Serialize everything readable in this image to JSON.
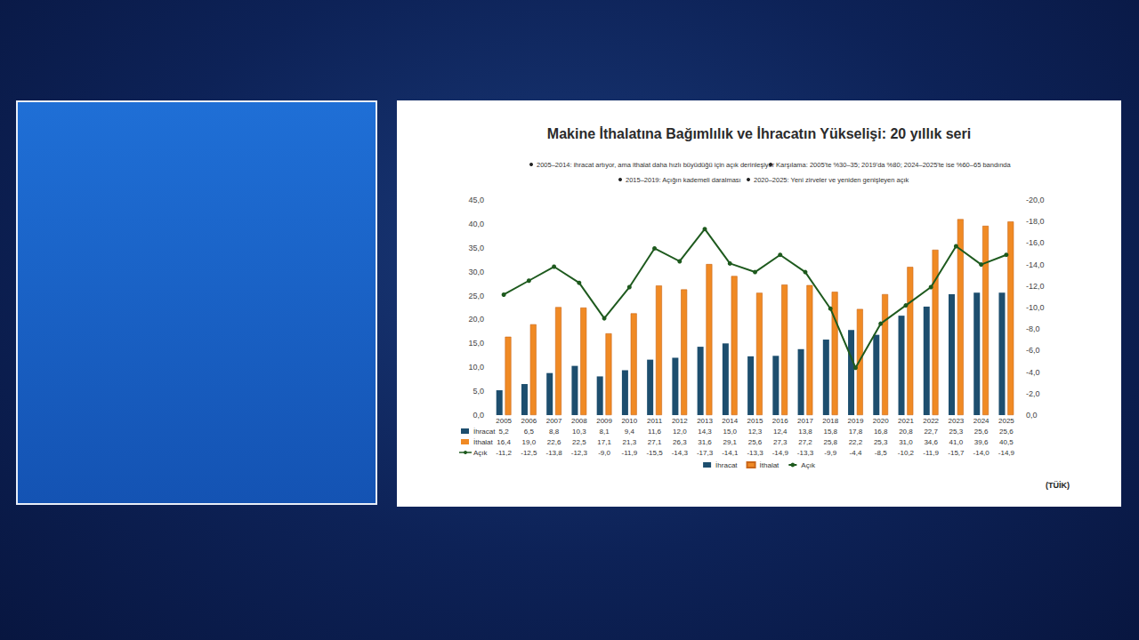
{
  "chart_data": {
    "type": "bar",
    "title": "Makine İthalatına Bağımlılık ve İhracatın Yükselişi: 20 yıllık seri",
    "annotations": [
      "2005–2014: ihracat artıyor, ama ithalat daha hızlı büyüdüğü için açık derinleşiyor",
      "Karşılama: 2005'te %30–35; 2019'da %80; 2024–2025'te ise %60–65 bandında",
      "2015–2019: Açığın kademeli daralması",
      "2020–2025: Yeni zirveler ve yeniden genişleyen açık"
    ],
    "source": "(TÜİK)",
    "categories": [
      "2005",
      "2006",
      "2007",
      "2008",
      "2009",
      "2010",
      "2011",
      "2012",
      "2013",
      "2014",
      "2015",
      "2016",
      "2017",
      "2018",
      "2019",
      "2020",
      "2021",
      "2022",
      "2023",
      "2024",
      "2025"
    ],
    "series": [
      {
        "name": "İhracat",
        "type": "bar",
        "color": "#1d4e6e",
        "values": [
          5.2,
          6.5,
          8.8,
          10.3,
          8.1,
          9.4,
          11.6,
          12.0,
          14.3,
          15.0,
          12.3,
          12.4,
          13.8,
          15.8,
          17.8,
          16.8,
          20.8,
          22.7,
          25.3,
          25.6,
          25.6
        ],
        "value_labels": [
          "5,2",
          "6,5",
          "8,8",
          "10,3",
          "8,1",
          "9,4",
          "11,6",
          "12,0",
          "14,3",
          "15,0",
          "12,3",
          "12,4",
          "13,8",
          "15,8",
          "17,8",
          "16,8",
          "20,8",
          "22,7",
          "25,3",
          "25,6",
          "25,6"
        ]
      },
      {
        "name": "İthalat",
        "type": "bar",
        "color": "#f08a24",
        "values": [
          16.4,
          19.0,
          22.6,
          22.5,
          17.1,
          21.3,
          27.1,
          26.3,
          31.6,
          29.1,
          25.6,
          27.3,
          27.2,
          25.8,
          22.2,
          25.3,
          31.0,
          34.6,
          41.0,
          39.6,
          40.5
        ],
        "value_labels": [
          "16,4",
          "19,0",
          "22,6",
          "22,5",
          "17,1",
          "21,3",
          "27,1",
          "26,3",
          "31,6",
          "29,1",
          "25,6",
          "27,3",
          "27,2",
          "25,8",
          "22,2",
          "25,3",
          "31,0",
          "34,6",
          "41,0",
          "39,6",
          "40,5"
        ]
      },
      {
        "name": "Açık",
        "type": "line",
        "axis": "y2",
        "color": "#1e5a1e",
        "marker": "circle",
        "values": [
          -11.2,
          -12.5,
          -13.8,
          -12.3,
          -9.0,
          -11.9,
          -15.5,
          -14.3,
          -17.3,
          -14.1,
          -13.3,
          -14.9,
          -13.3,
          -9.9,
          -4.4,
          -8.5,
          -10.2,
          -11.9,
          -15.7,
          -14.0,
          -14.9
        ],
        "value_labels": [
          "-11,2",
          "-12,5",
          "-13,8",
          "-12,3",
          "-9,0",
          "-11,9",
          "-15,5",
          "-14,3",
          "-17,3",
          "-14,1",
          "-13,3",
          "-14,9",
          "-13,3",
          "-9,9",
          "-4,4",
          "-8,5",
          "-10,2",
          "-11,9",
          "-15,7",
          "-14,0",
          "-14,9"
        ]
      }
    ],
    "ylim": [
      0,
      45
    ],
    "yticks": [
      {
        "value": 0,
        "label": "0,0"
      },
      {
        "value": 5,
        "label": "5,0"
      },
      {
        "value": 10,
        "label": "10,0"
      },
      {
        "value": 15,
        "label": "15,0"
      },
      {
        "value": 20,
        "label": "20,0"
      },
      {
        "value": 25,
        "label": "25,0"
      },
      {
        "value": 30,
        "label": "30,0"
      },
      {
        "value": 35,
        "label": "35,0"
      },
      {
        "value": 40,
        "label": "40,0"
      },
      {
        "value": 45,
        "label": "45,0"
      }
    ],
    "y2lim": [
      0,
      -20
    ],
    "y2ticks": [
      {
        "value": 0,
        "label": "0,0"
      },
      {
        "value": -2,
        "label": "-2,0"
      },
      {
        "value": -4,
        "label": "-4,0"
      },
      {
        "value": -6,
        "label": "-6,0"
      },
      {
        "value": -8,
        "label": "-8,0"
      },
      {
        "value": -10,
        "label": "-10,0"
      },
      {
        "value": -12,
        "label": "-12,0"
      },
      {
        "value": -14,
        "label": "-14,0"
      },
      {
        "value": -16,
        "label": "-16,0"
      },
      {
        "value": -18,
        "label": "-18,0"
      },
      {
        "value": -20,
        "label": "-20,0"
      }
    ],
    "grid": false,
    "legend": "bottom"
  }
}
